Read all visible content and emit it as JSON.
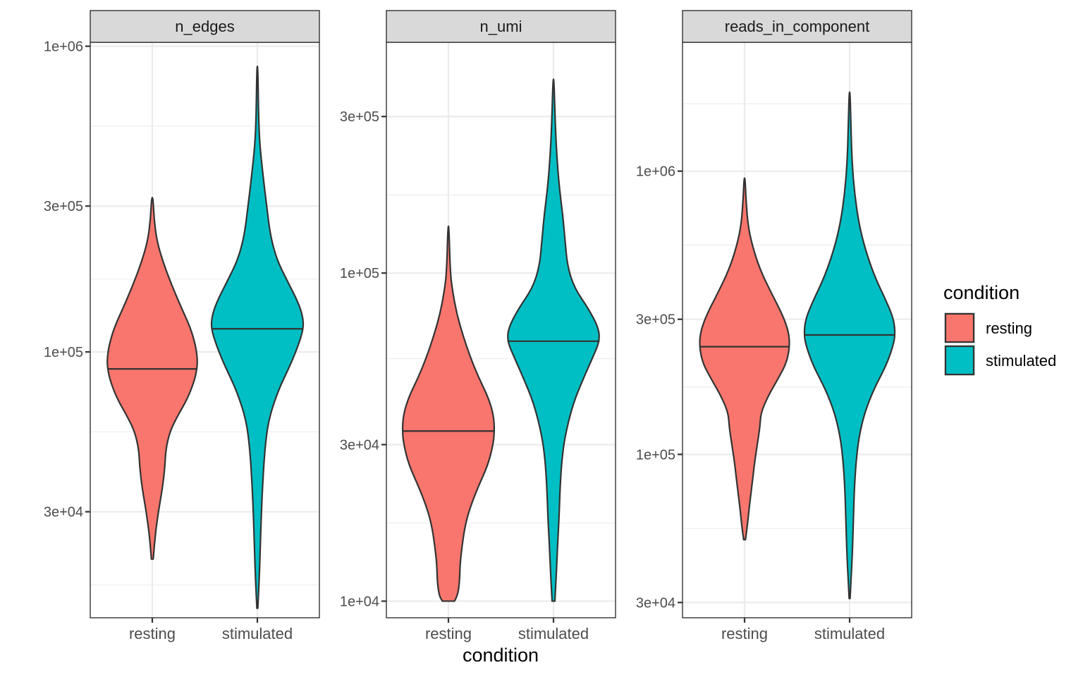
{
  "chart_data": {
    "type": "violin",
    "xlabel": "condition",
    "ylabel": "",
    "y_scale": "log10",
    "categories": [
      "resting",
      "stimulated"
    ],
    "grid": true,
    "legend": {
      "title": "condition",
      "position": "right",
      "entries": [
        {
          "label": "resting",
          "color": "#F8766D"
        },
        {
          "label": "stimulated",
          "color": "#00BFC4"
        }
      ]
    },
    "outline_color": "#333333",
    "panels": [
      {
        "title": "n_edges",
        "ylim": [
          13500,
          1030000
        ],
        "y_ticks": [
          30000,
          100000,
          300000,
          1000000
        ],
        "y_tick_labels": [
          "3e+04",
          "1e+05",
          "3e+05",
          "1e+06"
        ],
        "minor_ticks": [
          17300,
          54800,
          173000,
          548000
        ],
        "violins": [
          {
            "category": "resting",
            "min": 21000,
            "max": 320000,
            "median": 88000,
            "profile": [
              [
                21000,
                0.02
              ],
              [
                25000,
                0.06
              ],
              [
                30000,
                0.13
              ],
              [
                36000,
                0.22
              ],
              [
                42000,
                0.27
              ],
              [
                48000,
                0.29
              ],
              [
                55000,
                0.38
              ],
              [
                62000,
                0.55
              ],
              [
                70000,
                0.75
              ],
              [
                80000,
                0.9
              ],
              [
                88000,
                0.96
              ],
              [
                95000,
                0.97
              ],
              [
                105000,
                0.93
              ],
              [
                120000,
                0.82
              ],
              [
                140000,
                0.62
              ],
              [
                165000,
                0.42
              ],
              [
                195000,
                0.24
              ],
              [
                230000,
                0.1
              ],
              [
                270000,
                0.04
              ],
              [
                320000,
                0.015
              ]
            ]
          },
          {
            "category": "stimulated",
            "min": 14500,
            "max": 860000,
            "median": 119000,
            "profile": [
              [
                14500,
                0.01
              ],
              [
                18000,
                0.04
              ],
              [
                22000,
                0.06
              ],
              [
                28000,
                0.08
              ],
              [
                36000,
                0.11
              ],
              [
                48000,
                0.16
              ],
              [
                60000,
                0.24
              ],
              [
                75000,
                0.45
              ],
              [
                90000,
                0.7
              ],
              [
                105000,
                0.88
              ],
              [
                119000,
                0.99
              ],
              [
                130000,
                0.98
              ],
              [
                145000,
                0.88
              ],
              [
                170000,
                0.65
              ],
              [
                200000,
                0.42
              ],
              [
                240000,
                0.28
              ],
              [
                300000,
                0.2
              ],
              [
                380000,
                0.12
              ],
              [
                480000,
                0.05
              ],
              [
                600000,
                0.025
              ],
              [
                860000,
                0.01
              ]
            ]
          }
        ]
      },
      {
        "title": "n_umi",
        "ylim": [
          8900,
          505000
        ],
        "y_ticks": [
          10000,
          30000,
          100000,
          300000
        ],
        "y_tick_labels": [
          "1e+04",
          "3e+04",
          "1e+05",
          "3e+05"
        ],
        "minor_ticks": [
          17300,
          54800,
          173000
        ],
        "violins": [
          {
            "category": "resting",
            "min": 10000,
            "max": 139000,
            "median": 33000,
            "profile": [
              [
                10000,
                0.13
              ],
              [
                10400,
                0.2
              ],
              [
                11500,
                0.24
              ],
              [
                13000,
                0.25
              ],
              [
                15000,
                0.3
              ],
              [
                17000,
                0.36
              ],
              [
                19000,
                0.45
              ],
              [
                22000,
                0.62
              ],
              [
                26000,
                0.85
              ],
              [
                30000,
                0.96
              ],
              [
                33000,
                0.99
              ],
              [
                37000,
                0.97
              ],
              [
                42000,
                0.85
              ],
              [
                48000,
                0.65
              ],
              [
                55000,
                0.48
              ],
              [
                64000,
                0.32
              ],
              [
                75000,
                0.18
              ],
              [
                88000,
                0.09
              ],
              [
                100000,
                0.04
              ],
              [
                139000,
                0.01
              ]
            ]
          },
          {
            "category": "stimulated",
            "min": 10000,
            "max": 390000,
            "median": 62000,
            "profile": [
              [
                10000,
                0.03
              ],
              [
                12000,
                0.06
              ],
              [
                15000,
                0.09
              ],
              [
                18000,
                0.12
              ],
              [
                22000,
                0.14
              ],
              [
                27000,
                0.18
              ],
              [
                32000,
                0.25
              ],
              [
                40000,
                0.42
              ],
              [
                48000,
                0.65
              ],
              [
                56000,
                0.86
              ],
              [
                62000,
                0.99
              ],
              [
                68000,
                0.97
              ],
              [
                78000,
                0.75
              ],
              [
                90000,
                0.45
              ],
              [
                105000,
                0.3
              ],
              [
                125000,
                0.25
              ],
              [
                150000,
                0.2
              ],
              [
                185000,
                0.12
              ],
              [
                230000,
                0.07
              ],
              [
                280000,
                0.04
              ],
              [
                390000,
                0.01
              ]
            ]
          }
        ]
      },
      {
        "title": "reads_in_component",
        "ylim": [
          26500,
          2850000
        ],
        "y_ticks": [
          30000,
          100000,
          300000,
          1000000
        ],
        "y_tick_labels": [
          "3e+04",
          "1e+05",
          "3e+05",
          "1e+06"
        ],
        "minor_ticks": [
          54800,
          173000,
          548000,
          1730000
        ],
        "violins": [
          {
            "category": "resting",
            "min": 50000,
            "max": 945000,
            "median": 240000,
            "profile": [
              [
                50000,
                0.02
              ],
              [
                56000,
                0.06
              ],
              [
                65000,
                0.1
              ],
              [
                78000,
                0.16
              ],
              [
                95000,
                0.22
              ],
              [
                110000,
                0.28
              ],
              [
                125000,
                0.33
              ],
              [
                140000,
                0.35
              ],
              [
                160000,
                0.5
              ],
              [
                185000,
                0.72
              ],
              [
                210000,
                0.9
              ],
              [
                240000,
                0.97
              ],
              [
                270000,
                0.95
              ],
              [
                310000,
                0.82
              ],
              [
                370000,
                0.58
              ],
              [
                450000,
                0.33
              ],
              [
                550000,
                0.16
              ],
              [
                650000,
                0.07
              ],
              [
                800000,
                0.03
              ],
              [
                945000,
                0.01
              ]
            ]
          },
          {
            "category": "stimulated",
            "min": 31000,
            "max": 1900000,
            "median": 264000,
            "profile": [
              [
                31000,
                0.01
              ],
              [
                36000,
                0.03
              ],
              [
                45000,
                0.06
              ],
              [
                58000,
                0.08
              ],
              [
                75000,
                0.1
              ],
              [
                95000,
                0.14
              ],
              [
                115000,
                0.2
              ],
              [
                140000,
                0.32
              ],
              [
                170000,
                0.52
              ],
              [
                205000,
                0.78
              ],
              [
                240000,
                0.93
              ],
              [
                264000,
                0.98
              ],
              [
                300000,
                0.95
              ],
              [
                350000,
                0.78
              ],
              [
                420000,
                0.55
              ],
              [
                520000,
                0.35
              ],
              [
                650000,
                0.2
              ],
              [
                850000,
                0.1
              ],
              [
                1100000,
                0.05
              ],
              [
                1400000,
                0.03
              ],
              [
                1900000,
                0.01
              ]
            ]
          }
        ]
      }
    ]
  }
}
